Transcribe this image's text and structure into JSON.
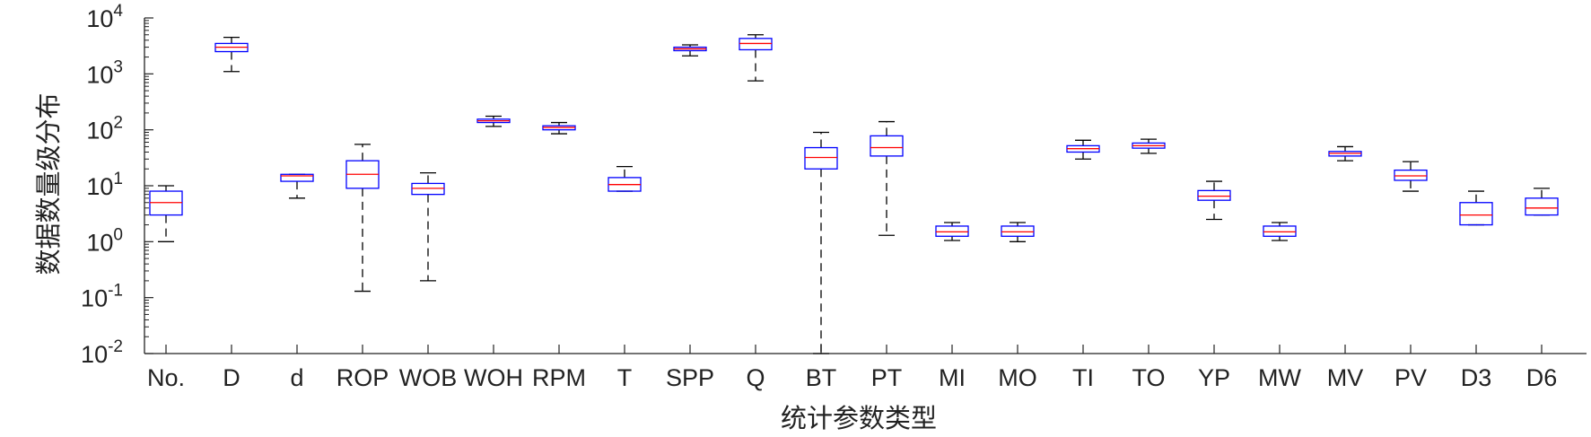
{
  "chart_data": {
    "type": "boxplot",
    "xlabel": "统计参数类型",
    "ylabel": "数据数量级分布",
    "yscale": "log",
    "ylim": [
      0.01,
      10000
    ],
    "yticks": [
      {
        "value": 0.01,
        "base": "10",
        "exp": "-2"
      },
      {
        "value": 0.1,
        "base": "10",
        "exp": "-1"
      },
      {
        "value": 1,
        "base": "10",
        "exp": "0"
      },
      {
        "value": 10,
        "base": "10",
        "exp": "1"
      },
      {
        "value": 100,
        "base": "10",
        "exp": "2"
      },
      {
        "value": 1000,
        "base": "10",
        "exp": "3"
      },
      {
        "value": 10000,
        "base": "10",
        "exp": "4"
      }
    ],
    "grid": false,
    "colors": {
      "box": "#0000ff",
      "median": "#ff0000",
      "whisker": "#000000",
      "axis": "#222222"
    },
    "categories": [
      "No.",
      "D",
      "d",
      "ROP",
      "WOB",
      "WOH",
      "RPM",
      "T",
      "SPP",
      "Q",
      "BT",
      "PT",
      "MI",
      "MO",
      "TI",
      "TO",
      "YP",
      "MW",
      "MV",
      "PV",
      "D3",
      "D6"
    ],
    "boxes": [
      {
        "min": 1.0,
        "q1": 3.0,
        "median": 5.0,
        "q3": 8.0,
        "max": 10.0
      },
      {
        "min": 1100,
        "q1": 2500,
        "median": 3000,
        "q3": 3500,
        "max": 4500
      },
      {
        "min": 6.0,
        "q1": 12.0,
        "median": 15.0,
        "q3": 16.0,
        "max": 16.0
      },
      {
        "min": 0.13,
        "q1": 9.0,
        "median": 16.0,
        "q3": 28.0,
        "max": 55.0
      },
      {
        "min": 0.2,
        "q1": 7.0,
        "median": 9.0,
        "q3": 11.0,
        "max": 17.0
      },
      {
        "min": 115,
        "q1": 135,
        "median": 145,
        "q3": 155,
        "max": 175
      },
      {
        "min": 85,
        "q1": 100,
        "median": 110,
        "q3": 118,
        "max": 135
      },
      {
        "min": 8.0,
        "q1": 8.0,
        "median": 10.5,
        "q3": 14.0,
        "max": 22.0
      },
      {
        "min": 2100,
        "q1": 2600,
        "median": 2800,
        "q3": 3000,
        "max": 3300
      },
      {
        "min": 750,
        "q1": 2700,
        "median": 3500,
        "q3": 4300,
        "max": 5000
      },
      {
        "min": 0.01,
        "q1": 20.0,
        "median": 32.0,
        "q3": 48.0,
        "max": 90.0
      },
      {
        "min": 1.3,
        "q1": 34.0,
        "median": 48.0,
        "q3": 78.0,
        "max": 140.0
      },
      {
        "min": 1.05,
        "q1": 1.25,
        "median": 1.5,
        "q3": 1.9,
        "max": 2.2
      },
      {
        "min": 1.0,
        "q1": 1.25,
        "median": 1.5,
        "q3": 1.9,
        "max": 2.2
      },
      {
        "min": 30.0,
        "q1": 40.0,
        "median": 46.0,
        "q3": 52.0,
        "max": 65.0
      },
      {
        "min": 38.0,
        "q1": 47.0,
        "median": 52.0,
        "q3": 58.0,
        "max": 68.0
      },
      {
        "min": 2.5,
        "q1": 5.5,
        "median": 6.5,
        "q3": 8.2,
        "max": 12.0
      },
      {
        "min": 1.05,
        "q1": 1.25,
        "median": 1.5,
        "q3": 1.9,
        "max": 2.2
      },
      {
        "min": 28.0,
        "q1": 34.0,
        "median": 38.0,
        "q3": 41.0,
        "max": 50.0
      },
      {
        "min": 8.0,
        "q1": 12.5,
        "median": 15.0,
        "q3": 19.0,
        "max": 27.0
      },
      {
        "min": 2.0,
        "q1": 2.0,
        "median": 3.0,
        "q3": 5.0,
        "max": 8.0
      },
      {
        "min": 3.0,
        "q1": 3.0,
        "median": 4.0,
        "q3": 6.0,
        "max": 9.0
      }
    ]
  }
}
